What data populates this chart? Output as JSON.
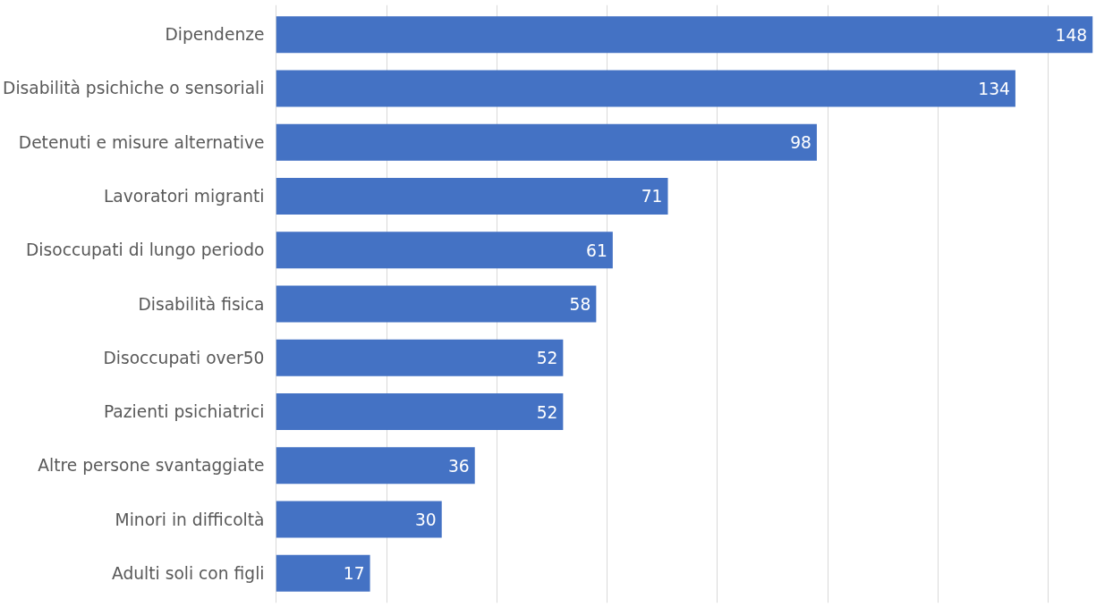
{
  "chart_data": {
    "type": "bar",
    "orientation": "horizontal",
    "categories": [
      "Dipendenze",
      "Disabilità psichiche o sensoriali",
      "Detenuti e misure alternative",
      "Lavoratori migranti",
      "Disoccupati di lungo periodo",
      "Disabilità fisica",
      "Disoccupati over50",
      "Pazienti psichiatrici",
      "Altre persone svantaggiate",
      "Minori in difficoltà",
      "Adulti soli con figli"
    ],
    "values": [
      148,
      134,
      98,
      71,
      61,
      58,
      52,
      52,
      36,
      30,
      17
    ],
    "color": "#4472c4",
    "data_labels": true,
    "grid": "x",
    "tick_labels": "y"
  }
}
